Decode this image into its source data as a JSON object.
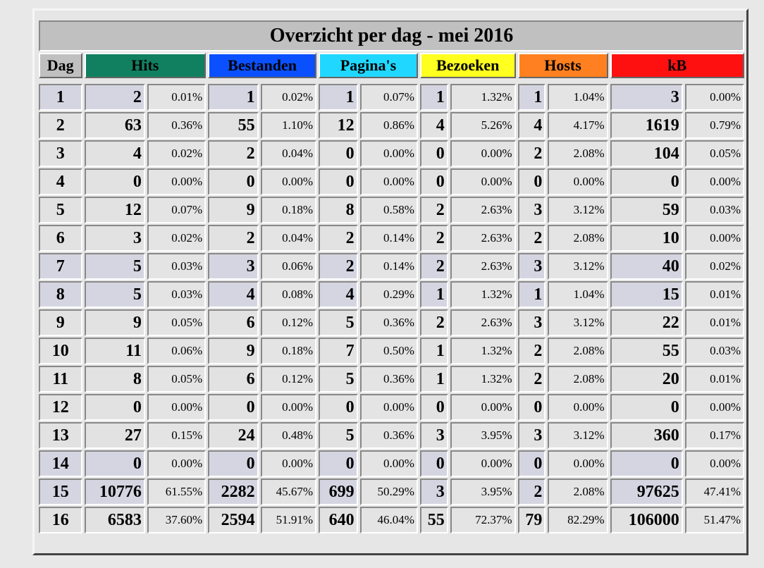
{
  "title": "Overzicht per dag - mei 2016",
  "headers": [
    {
      "label": "Dag",
      "color": "#c0c0c0"
    },
    {
      "label": "Hits",
      "color": "#108060"
    },
    {
      "label": "Bestanden",
      "color": "#0a50ff"
    },
    {
      "label": "Pagina's",
      "color": "#20d8ff"
    },
    {
      "label": "Bezoeken",
      "color": "#ffff20"
    },
    {
      "label": "Hosts",
      "color": "#ff8020"
    },
    {
      "label": "kB",
      "color": "#ff1010"
    }
  ],
  "rows": [
    {
      "day": "1",
      "hits": "2",
      "hits_pct": "0.01%",
      "files": "1",
      "files_pct": "0.02%",
      "pages": "1",
      "pages_pct": "0.07%",
      "visits": "1",
      "visits_pct": "1.32%",
      "hosts": "1",
      "hosts_pct": "1.04%",
      "kb": "3",
      "kb_pct": "0.00%",
      "weekend": false
    },
    {
      "day": "2",
      "hits": "63",
      "hits_pct": "0.36%",
      "files": "55",
      "files_pct": "1.10%",
      "pages": "12",
      "pages_pct": "0.86%",
      "visits": "4",
      "visits_pct": "5.26%",
      "hosts": "4",
      "hosts_pct": "4.17%",
      "kb": "1619",
      "kb_pct": "0.79%",
      "weekend": true
    },
    {
      "day": "3",
      "hits": "4",
      "hits_pct": "0.02%",
      "files": "2",
      "files_pct": "0.04%",
      "pages": "0",
      "pages_pct": "0.00%",
      "visits": "0",
      "visits_pct": "0.00%",
      "hosts": "2",
      "hosts_pct": "2.08%",
      "kb": "104",
      "kb_pct": "0.05%",
      "weekend": true
    },
    {
      "day": "4",
      "hits": "0",
      "hits_pct": "0.00%",
      "files": "0",
      "files_pct": "0.00%",
      "pages": "0",
      "pages_pct": "0.00%",
      "visits": "0",
      "visits_pct": "0.00%",
      "hosts": "0",
      "hosts_pct": "0.00%",
      "kb": "0",
      "kb_pct": "0.00%",
      "weekend": true
    },
    {
      "day": "5",
      "hits": "12",
      "hits_pct": "0.07%",
      "files": "9",
      "files_pct": "0.18%",
      "pages": "8",
      "pages_pct": "0.58%",
      "visits": "2",
      "visits_pct": "2.63%",
      "hosts": "3",
      "hosts_pct": "3.12%",
      "kb": "59",
      "kb_pct": "0.03%",
      "weekend": true
    },
    {
      "day": "6",
      "hits": "3",
      "hits_pct": "0.02%",
      "files": "2",
      "files_pct": "0.04%",
      "pages": "2",
      "pages_pct": "0.14%",
      "visits": "2",
      "visits_pct": "2.63%",
      "hosts": "2",
      "hosts_pct": "2.08%",
      "kb": "10",
      "kb_pct": "0.00%",
      "weekend": true
    },
    {
      "day": "7",
      "hits": "5",
      "hits_pct": "0.03%",
      "files": "3",
      "files_pct": "0.06%",
      "pages": "2",
      "pages_pct": "0.14%",
      "visits": "2",
      "visits_pct": "2.63%",
      "hosts": "3",
      "hosts_pct": "3.12%",
      "kb": "40",
      "kb_pct": "0.02%",
      "weekend": false
    },
    {
      "day": "8",
      "hits": "5",
      "hits_pct": "0.03%",
      "files": "4",
      "files_pct": "0.08%",
      "pages": "4",
      "pages_pct": "0.29%",
      "visits": "1",
      "visits_pct": "1.32%",
      "hosts": "1",
      "hosts_pct": "1.04%",
      "kb": "15",
      "kb_pct": "0.01%",
      "weekend": false
    },
    {
      "day": "9",
      "hits": "9",
      "hits_pct": "0.05%",
      "files": "6",
      "files_pct": "0.12%",
      "pages": "5",
      "pages_pct": "0.36%",
      "visits": "2",
      "visits_pct": "2.63%",
      "hosts": "3",
      "hosts_pct": "3.12%",
      "kb": "22",
      "kb_pct": "0.01%",
      "weekend": true
    },
    {
      "day": "10",
      "hits": "11",
      "hits_pct": "0.06%",
      "files": "9",
      "files_pct": "0.18%",
      "pages": "7",
      "pages_pct": "0.50%",
      "visits": "1",
      "visits_pct": "1.32%",
      "hosts": "2",
      "hosts_pct": "2.08%",
      "kb": "55",
      "kb_pct": "0.03%",
      "weekend": true
    },
    {
      "day": "11",
      "hits": "8",
      "hits_pct": "0.05%",
      "files": "6",
      "files_pct": "0.12%",
      "pages": "5",
      "pages_pct": "0.36%",
      "visits": "1",
      "visits_pct": "1.32%",
      "hosts": "2",
      "hosts_pct": "2.08%",
      "kb": "20",
      "kb_pct": "0.01%",
      "weekend": true
    },
    {
      "day": "12",
      "hits": "0",
      "hits_pct": "0.00%",
      "files": "0",
      "files_pct": "0.00%",
      "pages": "0",
      "pages_pct": "0.00%",
      "visits": "0",
      "visits_pct": "0.00%",
      "hosts": "0",
      "hosts_pct": "0.00%",
      "kb": "0",
      "kb_pct": "0.00%",
      "weekend": true
    },
    {
      "day": "13",
      "hits": "27",
      "hits_pct": "0.15%",
      "files": "24",
      "files_pct": "0.48%",
      "pages": "5",
      "pages_pct": "0.36%",
      "visits": "3",
      "visits_pct": "3.95%",
      "hosts": "3",
      "hosts_pct": "3.12%",
      "kb": "360",
      "kb_pct": "0.17%",
      "weekend": true
    },
    {
      "day": "14",
      "hits": "0",
      "hits_pct": "0.00%",
      "files": "0",
      "files_pct": "0.00%",
      "pages": "0",
      "pages_pct": "0.00%",
      "visits": "0",
      "visits_pct": "0.00%",
      "hosts": "0",
      "hosts_pct": "0.00%",
      "kb": "0",
      "kb_pct": "0.00%",
      "weekend": false
    },
    {
      "day": "15",
      "hits": "10776",
      "hits_pct": "61.55%",
      "files": "2282",
      "files_pct": "45.67%",
      "pages": "699",
      "pages_pct": "50.29%",
      "visits": "3",
      "visits_pct": "3.95%",
      "hosts": "2",
      "hosts_pct": "2.08%",
      "kb": "97625",
      "kb_pct": "47.41%",
      "weekend": false
    },
    {
      "day": "16",
      "hits": "6583",
      "hits_pct": "37.60%",
      "files": "2594",
      "files_pct": "51.91%",
      "pages": "640",
      "pages_pct": "46.04%",
      "visits": "55",
      "visits_pct": "72.37%",
      "hosts": "79",
      "hosts_pct": "82.29%",
      "kb": "106000",
      "kb_pct": "51.47%",
      "weekend": true
    }
  ]
}
